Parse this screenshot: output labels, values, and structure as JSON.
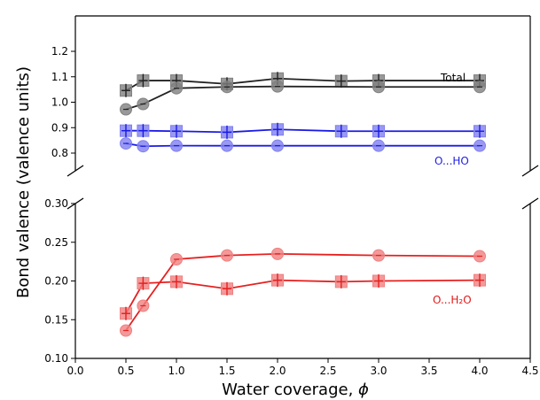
{
  "chart_data": {
    "type": "line",
    "xlabel_text": "Water coverage, ",
    "xlabel_symbol": "ϕ",
    "ylabel": "Bond valence (valence units)",
    "xlim": [
      0.0,
      4.5
    ],
    "xticks": [
      "0.0",
      "0.5",
      "1.0",
      "1.5",
      "2.0",
      "2.5",
      "3.0",
      "3.5",
      "4.0",
      "4.5"
    ],
    "axis_break": true,
    "panels": [
      {
        "id": "top",
        "ylim": [
          0.75,
          1.2
        ],
        "yticks": [
          "0.8",
          "0.9",
          "1.0",
          "1.1",
          "1.2"
        ],
        "annotations": [
          {
            "text": "Total",
            "color": "#000000"
          },
          {
            "text": "O...HO",
            "color": "#1f1fe0"
          }
        ],
        "series": [
          {
            "group": "Total",
            "marker": "square",
            "color": "#222222",
            "fill": "#808080",
            "x": [
              0.5,
              0.67,
              1.0,
              1.5,
              2.0,
              2.63,
              3.0,
              4.0
            ],
            "y": [
              1.046,
              1.085,
              1.085,
              1.072,
              1.093,
              1.083,
              1.085,
              1.085
            ]
          },
          {
            "group": "Total",
            "marker": "circle",
            "color": "#222222",
            "fill": "#808080",
            "x": [
              0.5,
              0.67,
              1.0,
              1.5,
              2.0,
              3.0,
              4.0
            ],
            "y": [
              0.972,
              0.993,
              1.055,
              1.06,
              1.062,
              1.06,
              1.06
            ]
          },
          {
            "group": "O...HO",
            "marker": "square",
            "color": "#1a1ae6",
            "fill": "#8080f0",
            "x": [
              0.5,
              0.67,
              1.0,
              1.5,
              2.0,
              2.63,
              3.0,
              4.0
            ],
            "y": [
              0.888,
              0.888,
              0.886,
              0.882,
              0.893,
              0.886,
              0.886,
              0.886
            ]
          },
          {
            "group": "O...HO",
            "marker": "circle",
            "color": "#1a1ae6",
            "fill": "#8080f0",
            "x": [
              0.5,
              0.67,
              1.0,
              1.5,
              2.0,
              3.0,
              4.0
            ],
            "y": [
              0.838,
              0.827,
              0.829,
              0.829,
              0.829,
              0.829,
              0.829
            ]
          }
        ]
      },
      {
        "id": "bottom",
        "ylim": [
          0.1,
          0.3
        ],
        "yticks": [
          "0.10",
          "0.15",
          "0.20",
          "0.25",
          "0.30"
        ],
        "annotations": [
          {
            "text": "O...H₂O",
            "color": "#e01a1a"
          }
        ],
        "series": [
          {
            "group": "O...H2O",
            "marker": "square",
            "color": "#e62020",
            "fill": "#f08080",
            "x": [
              0.5,
              0.67,
              1.0,
              1.5,
              2.0,
              2.63,
              3.0,
              4.0
            ],
            "y": [
              0.158,
              0.197,
              0.199,
              0.19,
              0.201,
              0.199,
              0.2,
              0.201
            ]
          },
          {
            "group": "O...H2O",
            "marker": "circle",
            "color": "#e62020",
            "fill": "#f08080",
            "x": [
              0.5,
              0.67,
              1.0,
              1.5,
              2.0,
              3.0,
              4.0
            ],
            "y": [
              0.136,
              0.168,
              0.228,
              0.233,
              0.235,
              0.233,
              0.232
            ]
          }
        ]
      }
    ]
  }
}
